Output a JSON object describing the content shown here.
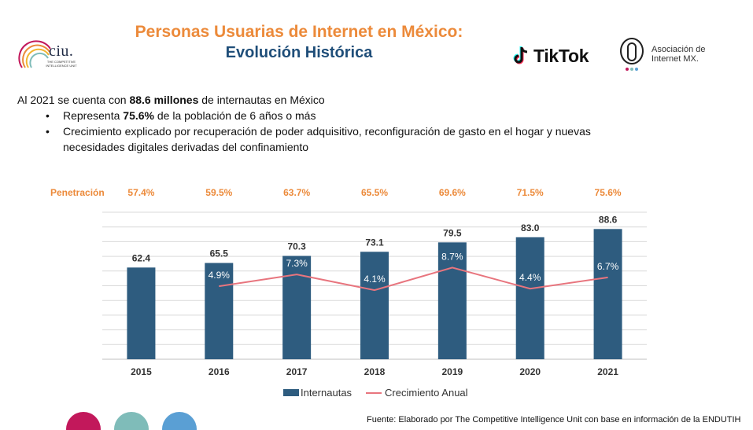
{
  "header": {
    "title_line1": "Personas Usuarias de Internet en México:",
    "title_line2": "Evolución Histórica",
    "ciu_logo_text": "ciu.",
    "ciu_logo_subtitle": "THE COMPETITIVE INTELLIGENCE UNIT",
    "tiktok_logo_text": "TikTok",
    "amx_logo_line1": "Asociación de",
    "amx_logo_line2": "Internet MX."
  },
  "summary": {
    "intro_prefix": "Al 2021 se cuenta con ",
    "intro_bold": "88.6 millones",
    "intro_suffix": " de internautas en México",
    "bullet1_prefix": "Representa ",
    "bullet1_bold": "75.6%",
    "bullet1_suffix": " de la población de 6 años o más",
    "bullet2_line1": "Crecimiento explicado por recuperación de poder adquisitivo, reconfiguración de gasto en el hogar y nuevas",
    "bullet2_line2": "necesidades digitales derivadas del confinamiento"
  },
  "chart_data": {
    "type": "bar",
    "categories": [
      "2015",
      "2016",
      "2017",
      "2018",
      "2019",
      "2020",
      "2021"
    ],
    "series": [
      {
        "name": "Internautas",
        "type": "bar",
        "values": [
          62.4,
          65.5,
          70.3,
          73.1,
          79.5,
          83.0,
          88.6
        ],
        "labels": [
          "62.4",
          "65.5",
          "70.3",
          "73.1",
          "79.5",
          "83.0",
          "88.6"
        ]
      },
      {
        "name": "Crecimiento Anual",
        "type": "line",
        "values": [
          null,
          4.9,
          7.3,
          4.1,
          8.7,
          4.4,
          6.7
        ],
        "labels": [
          "",
          "4.9%",
          "7.3%",
          "4.1%",
          "8.7%",
          "4.4%",
          "6.7%"
        ]
      }
    ],
    "penetration_label": "Penetración",
    "penetration": [
      "57.4%",
      "59.5%",
      "63.7%",
      "65.5%",
      "69.6%",
      "71.5%",
      "75.6%"
    ],
    "bar_ylim": [
      0,
      100
    ],
    "line_ylim": [
      -10,
      20
    ],
    "grid": true,
    "legend_position": "bottom",
    "colors": {
      "bar": "#2e5c7f",
      "line": "#e8757e",
      "penetration": "#ec8a3a"
    }
  },
  "footer": {
    "source": "Fuente: Elaborado por The Competitive Intelligence Unit con base en información de la ENDUTIH"
  },
  "decor": {
    "dot_colors": [
      "#c2185b",
      "#7fbcb9",
      "#5a9fd4"
    ]
  }
}
